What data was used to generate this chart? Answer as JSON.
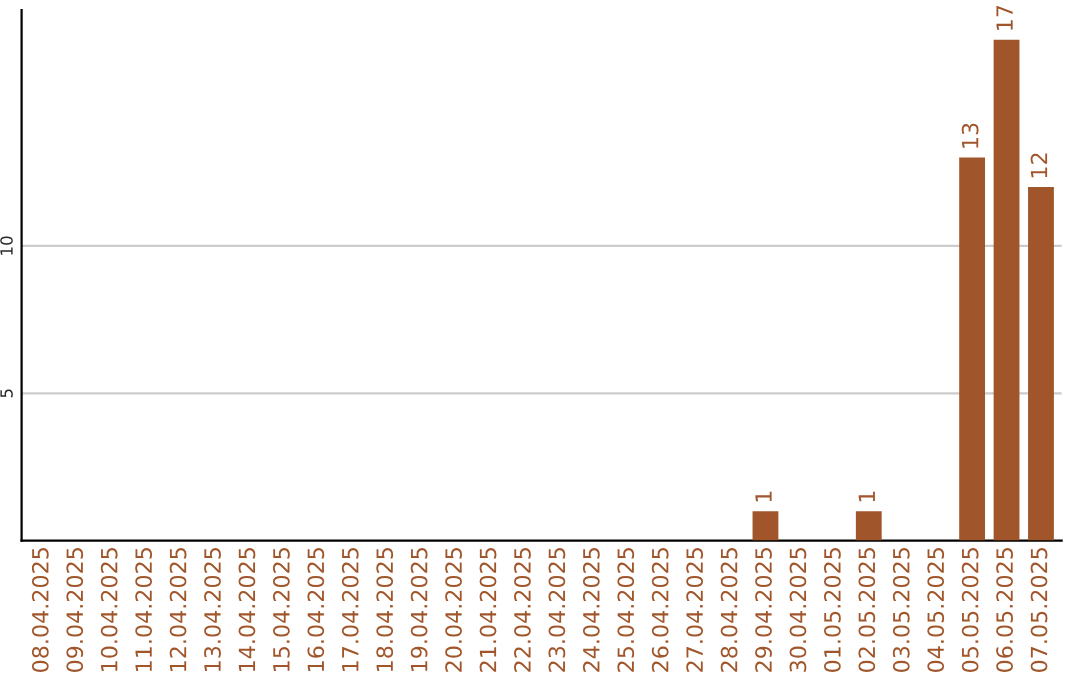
{
  "chart_data": {
    "type": "bar",
    "categories": [
      "08.04.2025",
      "09.04.2025",
      "10.04.2025",
      "11.04.2025",
      "12.04.2025",
      "13.04.2025",
      "14.04.2025",
      "15.04.2025",
      "16.04.2025",
      "17.04.2025",
      "18.04.2025",
      "19.04.2025",
      "20.04.2025",
      "21.04.2025",
      "22.04.2025",
      "23.04.2025",
      "24.04.2025",
      "25.04.2025",
      "26.04.2025",
      "27.04.2025",
      "28.04.2025",
      "29.04.2025",
      "30.04.2025",
      "01.05.2025",
      "02.05.2025",
      "03.05.2025",
      "04.05.2025",
      "05.05.2025",
      "06.05.2025",
      "07.05.2025"
    ],
    "values": [
      0,
      0,
      0,
      0,
      0,
      0,
      0,
      0,
      0,
      0,
      0,
      0,
      0,
      0,
      0,
      0,
      0,
      0,
      0,
      0,
      0,
      1,
      0,
      0,
      1,
      0,
      0,
      13,
      17,
      12
    ],
    "value_labels": [
      null,
      null,
      null,
      null,
      null,
      null,
      null,
      null,
      null,
      null,
      null,
      null,
      null,
      null,
      null,
      null,
      null,
      null,
      null,
      null,
      null,
      "1",
      null,
      null,
      "1",
      null,
      null,
      "13",
      "17",
      "12"
    ],
    "color": "#a0562a",
    "ylim": [
      0,
      18
    ],
    "yticks": [
      5,
      10
    ],
    "grid": "y",
    "legend": false
  }
}
